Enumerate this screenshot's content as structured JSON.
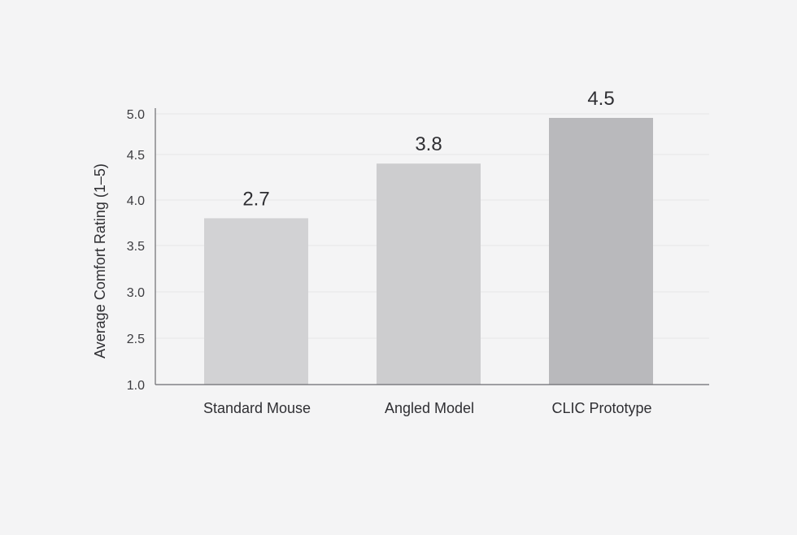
{
  "chart_data": {
    "type": "bar",
    "title": "",
    "xlabel": "",
    "ylabel": "Average Comfort Rating (1–5)",
    "categories": [
      "Standard Mouse",
      "Angled Model",
      "CLIC Prototype"
    ],
    "series": [
      {
        "values": [
          2.7,
          3.8,
          4.5
        ]
      }
    ],
    "data_labels": [
      "2.7",
      "3.8",
      "4.5"
    ],
    "y_ticks": [
      1.0,
      2.5,
      3.0,
      3.5,
      4.0,
      4.5,
      5.0
    ],
    "y_tick_labels": [
      "1.0",
      "2.5",
      "3.0",
      "3.5",
      "4.0",
      "4.5",
      "5.0"
    ],
    "grid": true,
    "legend": "none",
    "colors": {
      "bars": [
        "#d2d2d4",
        "#cdcdcf",
        "#b9b9bc"
      ],
      "axis": "#6b6b70",
      "grid": "#e6e6e8",
      "text": "#2f2f33",
      "tick_text": "#3c3c40"
    }
  }
}
